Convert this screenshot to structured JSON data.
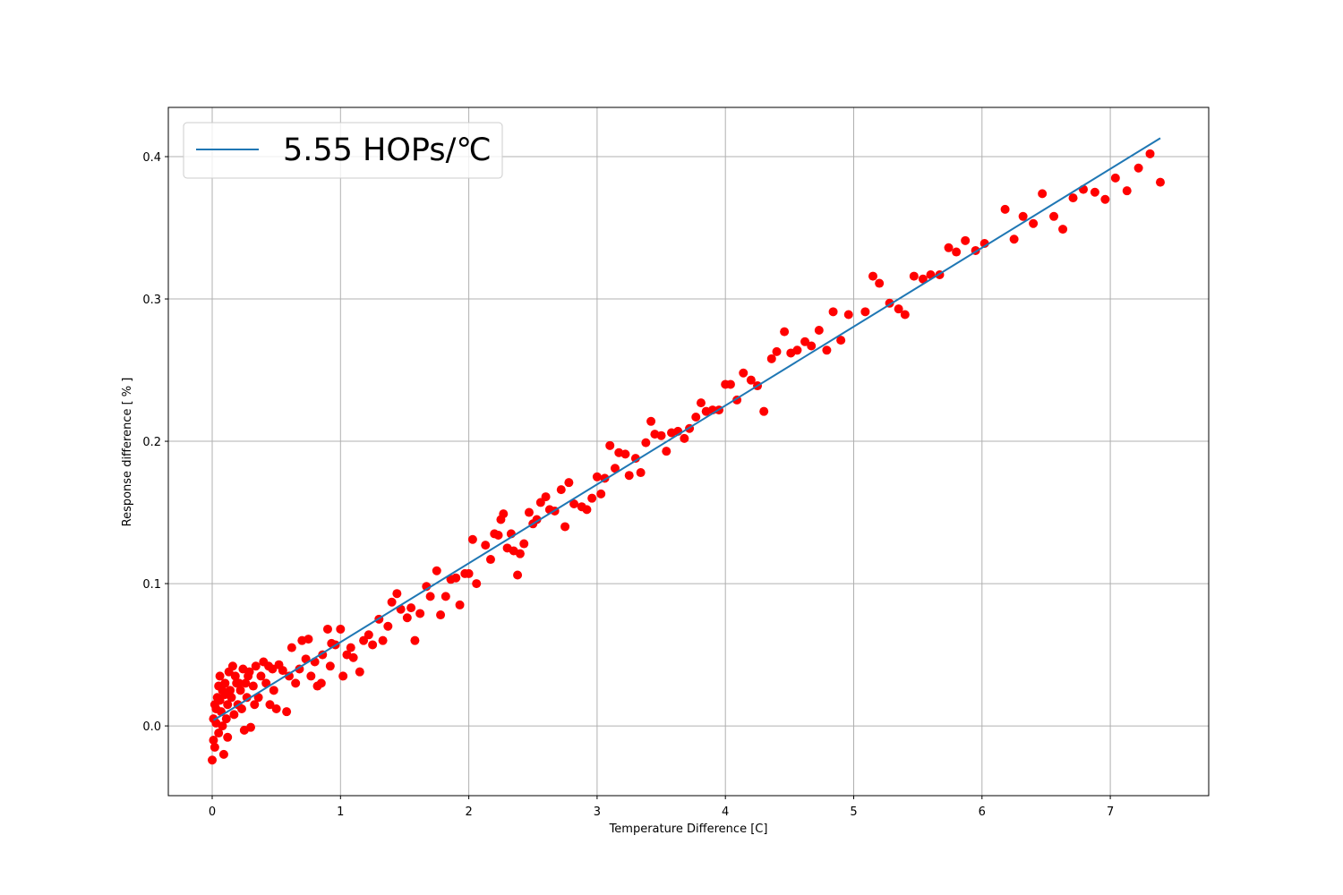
{
  "chart_data": {
    "type": "scatter",
    "xlabel": "Temperature Difference [C]",
    "ylabel": "Response difference [ % ]",
    "xlim": [
      -0.342,
      7.767
    ],
    "ylim": [
      -0.049,
      0.4346
    ],
    "xticks": [
      0,
      1,
      2,
      3,
      4,
      5,
      6,
      7
    ],
    "yticks": [
      {
        "value": 0,
        "label": "0.0"
      },
      0.1,
      0.2,
      0.3,
      0.4
    ],
    "grid": true,
    "legend_loc": "upper left",
    "series": [
      {
        "kind": "scatter",
        "color": "#ff0000",
        "x": [
          2.03,
          2.13,
          2.17,
          2.2,
          2.23,
          2.25,
          2.27,
          2.3,
          2.33,
          2.35,
          2.38,
          2.4,
          2.43,
          2.47,
          2.5,
          2.53,
          2.56,
          2.6,
          2.63,
          2.67,
          2.72,
          2.75,
          2.78,
          2.82,
          2.88,
          2.92,
          2.96,
          3.0,
          3.03,
          3.06,
          3.1,
          3.14,
          3.17,
          3.22,
          3.25,
          3.3,
          3.34,
          3.38,
          3.42,
          3.45,
          3.5,
          3.54,
          3.58,
          3.63,
          3.68,
          3.72,
          3.77,
          3.81,
          3.85,
          3.9,
          3.95,
          4.0,
          4.04,
          4.09,
          4.14,
          4.2,
          4.25,
          4.3,
          4.36,
          4.4,
          4.46,
          4.51,
          4.56,
          4.62,
          4.67,
          4.73,
          4.79,
          4.84,
          4.9,
          4.96,
          5.09,
          5.15,
          5.2,
          5.28,
          5.35,
          5.4,
          5.47,
          5.54,
          5.6,
          5.67,
          5.74,
          5.8,
          5.87,
          5.95,
          6.02,
          6.18,
          6.25,
          6.32,
          6.4,
          6.47,
          6.56,
          6.63,
          6.71,
          6.79,
          6.88,
          6.96,
          7.04,
          7.13,
          7.22,
          7.31,
          7.39,
          1.0,
          1.02,
          1.05,
          1.08,
          1.1,
          1.15,
          1.18,
          1.22,
          1.25,
          1.3,
          1.33,
          1.37,
          1.4,
          1.44,
          1.47,
          1.52,
          1.55,
          1.58,
          1.62,
          1.67,
          1.7,
          1.75,
          1.78,
          1.82,
          1.86,
          1.9,
          1.93,
          1.97,
          2.0,
          2.06,
          0.5,
          0.55,
          0.58,
          0.62,
          0.65,
          0.7,
          0.73,
          0.77,
          0.8,
          0.82,
          0.86,
          0.9,
          0.93,
          0.96,
          0.52,
          0.6,
          0.68,
          0.75,
          0.85,
          0.92,
          0.0,
          0.01,
          0.01,
          0.02,
          0.03,
          0.04,
          0.05,
          0.06,
          0.07,
          0.08,
          0.09,
          0.1,
          0.11,
          0.12,
          0.13,
          0.15,
          0.16,
          0.17,
          0.19,
          0.2,
          0.22,
          0.24,
          0.25,
          0.27,
          0.28,
          0.3,
          0.32,
          0.34,
          0.36,
          0.38,
          0.4,
          0.42,
          0.45,
          0.47,
          0.03,
          0.05,
          0.08,
          0.12,
          0.14,
          0.18,
          0.21,
          0.26,
          0.33,
          0.44,
          0.48,
          0.02,
          0.06,
          0.1,
          0.23,
          0.29
        ],
        "values": [
          0.131,
          0.127,
          0.117,
          0.135,
          0.134,
          0.145,
          0.149,
          0.125,
          0.135,
          0.123,
          0.106,
          0.121,
          0.128,
          0.15,
          0.142,
          0.145,
          0.157,
          0.161,
          0.152,
          0.151,
          0.166,
          0.14,
          0.171,
          0.156,
          0.154,
          0.152,
          0.16,
          0.175,
          0.163,
          0.174,
          0.197,
          0.181,
          0.192,
          0.191,
          0.176,
          0.188,
          0.178,
          0.199,
          0.214,
          0.205,
          0.204,
          0.193,
          0.206,
          0.207,
          0.202,
          0.209,
          0.217,
          0.227,
          0.221,
          0.222,
          0.222,
          0.24,
          0.24,
          0.229,
          0.248,
          0.243,
          0.239,
          0.221,
          0.258,
          0.263,
          0.277,
          0.262,
          0.264,
          0.27,
          0.267,
          0.278,
          0.264,
          0.291,
          0.271,
          0.289,
          0.291,
          0.316,
          0.311,
          0.297,
          0.293,
          0.289,
          0.316,
          0.314,
          0.317,
          0.317,
          0.336,
          0.333,
          0.341,
          0.334,
          0.339,
          0.363,
          0.342,
          0.358,
          0.353,
          0.374,
          0.358,
          0.349,
          0.371,
          0.377,
          0.375,
          0.37,
          0.385,
          0.376,
          0.392,
          0.402,
          0.382,
          0.068,
          0.035,
          0.05,
          0.055,
          0.048,
          0.038,
          0.06,
          0.064,
          0.057,
          0.075,
          0.06,
          0.07,
          0.087,
          0.093,
          0.082,
          0.076,
          0.083,
          0.06,
          0.079,
          0.098,
          0.091,
          0.109,
          0.078,
          0.091,
          0.103,
          0.104,
          0.085,
          0.107,
          0.107,
          0.1,
          0.012,
          0.039,
          0.01,
          0.055,
          0.03,
          0.06,
          0.047,
          0.035,
          0.045,
          0.028,
          0.05,
          0.068,
          0.058,
          0.057,
          0.043,
          0.035,
          0.04,
          0.061,
          0.03,
          0.042,
          -0.024,
          -0.01,
          0.005,
          0.015,
          0.002,
          0.02,
          -0.005,
          0.035,
          0.01,
          0.025,
          -0.02,
          0.03,
          0.005,
          0.015,
          0.038,
          0.02,
          0.042,
          0.008,
          0.03,
          0.015,
          0.025,
          0.04,
          -0.003,
          0.02,
          0.035,
          -0.001,
          0.028,
          0.042,
          0.02,
          0.035,
          0.045,
          0.03,
          0.015,
          0.04,
          0.012,
          0.028,
          0.0,
          -0.008,
          0.025,
          0.035,
          0.03,
          0.03,
          0.015,
          0.042,
          0.025,
          -0.015,
          0.018,
          0.022,
          0.012,
          0.038
        ]
      },
      {
        "kind": "line",
        "name": "5.55 HOPs/℃",
        "color": "#1f77b4",
        "x": [
          0.01,
          7.39
        ],
        "values": [
          0.004,
          0.413
        ]
      }
    ]
  }
}
